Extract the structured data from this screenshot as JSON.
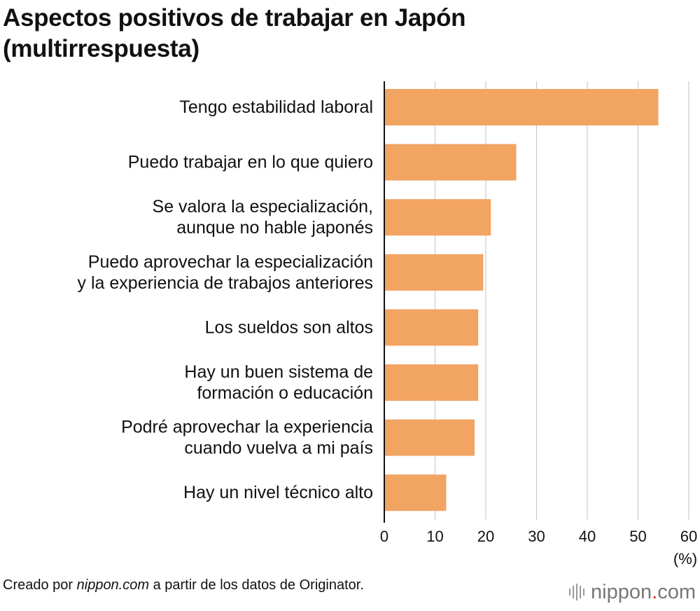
{
  "title_lines": [
    "Aspectos positivos de trabajar en Japón",
    "(multirrespuesta)"
  ],
  "chart_data": {
    "type": "bar",
    "orientation": "horizontal",
    "categories": [
      [
        "Tengo estabilidad laboral"
      ],
      [
        "Puedo trabajar en lo que quiero"
      ],
      [
        "Se valora la especialización,",
        "aunque no hable japonés"
      ],
      [
        "Puedo aprovechar la especialización",
        "y la experiencia de trabajos anteriores"
      ],
      [
        "Los sueldos son altos"
      ],
      [
        "Hay un buen sistema de",
        "formación o educación"
      ],
      [
        "Podré aprovechar la experiencia",
        "cuando vuelva a mi país"
      ],
      [
        "Hay un nivel técnico alto"
      ]
    ],
    "values": [
      54,
      26,
      21,
      19.5,
      18.5,
      18.5,
      17.8,
      12.2
    ],
    "xlim": [
      0,
      60
    ],
    "xticks": [
      0,
      10,
      20,
      30,
      40,
      50,
      60
    ],
    "unit_label": "(%)",
    "grid": true,
    "bar_color": "#f2a463",
    "grid_color": "#cccccc"
  },
  "footer": {
    "prefix": "Creado por ",
    "source_site": "nippon.com",
    "suffix": " a partir de los datos de Originator."
  },
  "logo": {
    "name": "nippon",
    "dot": ".",
    "tld": "com",
    "icon": "nippon-logo-icon"
  }
}
